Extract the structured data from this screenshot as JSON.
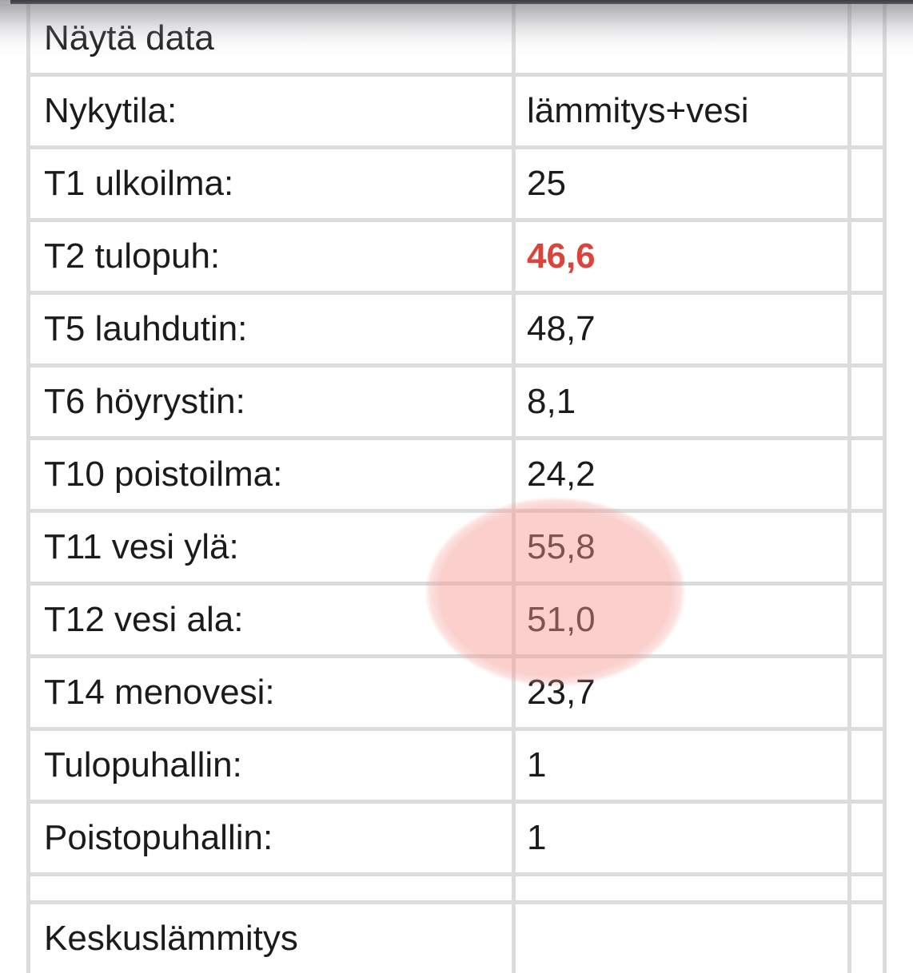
{
  "topbar": {
    "color_top": "#393941",
    "color_bottom": "#55555d"
  },
  "table": {
    "rows": [
      {
        "label": "Näytä data",
        "value": "",
        "kind": "section"
      },
      {
        "label": "Nykytila:",
        "value": "lämmitys+vesi",
        "kind": "data"
      },
      {
        "label": "T1 ulkoilma:",
        "value": "25",
        "kind": "data"
      },
      {
        "label": "T2 tulopuh:",
        "value": "46,6",
        "kind": "data",
        "value_style": "alert"
      },
      {
        "label": "T5 lauhdutin:",
        "value": "48,7",
        "kind": "data"
      },
      {
        "label": "T6 höyrystin:",
        "value": "8,1",
        "kind": "data"
      },
      {
        "label": "T10 poistoilma:",
        "value": "24,2",
        "kind": "data"
      },
      {
        "label": "T11 vesi ylä:",
        "value": "55,8",
        "kind": "data",
        "highlighted": true
      },
      {
        "label": "T12 vesi ala:",
        "value": "51,0",
        "kind": "data",
        "highlighted": true
      },
      {
        "label": "T14 menovesi:",
        "value": "23,7",
        "kind": "data"
      },
      {
        "label": "Tulopuhallin:",
        "value": "1",
        "kind": "data"
      },
      {
        "label": "Poistopuhallin:",
        "value": "1",
        "kind": "data"
      },
      {
        "label": "",
        "value": "",
        "kind": "spacer"
      },
      {
        "label": "Keskuslämmitys",
        "value": "",
        "kind": "section"
      }
    ]
  },
  "annotations": {
    "highlight_ellipse_color": "#f49690",
    "alert_value_color": "#d9453c"
  },
  "colors": {
    "grid_line": "#dcdcdc",
    "cell_background": "#ffffff",
    "text": "#1b1b1d"
  }
}
